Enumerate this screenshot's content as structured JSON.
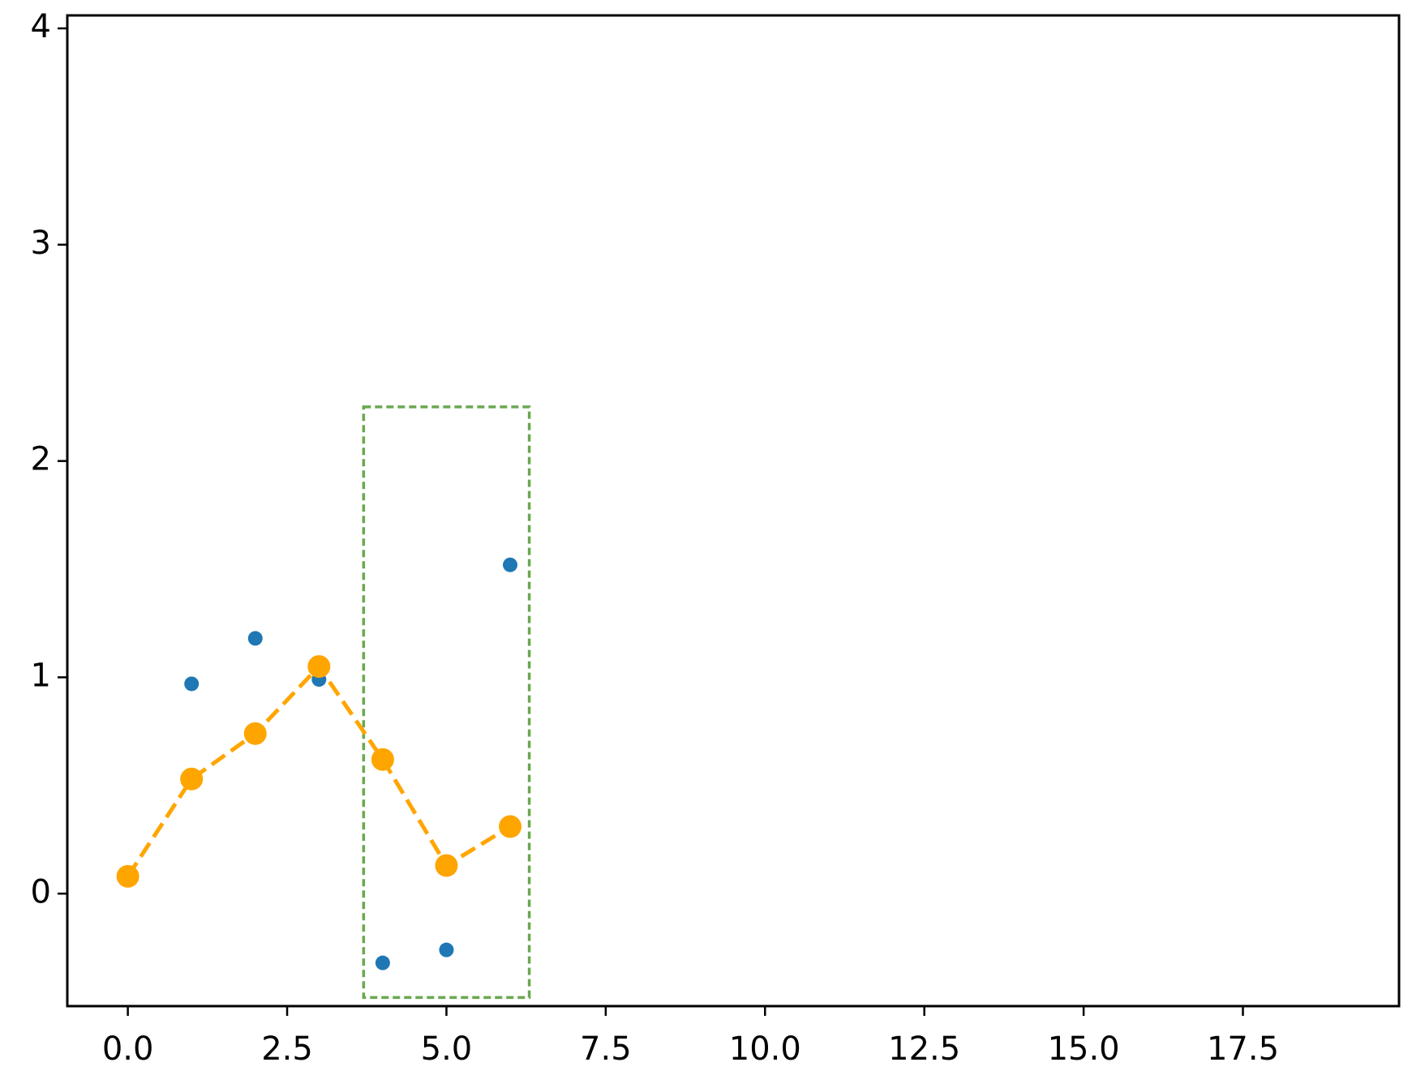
{
  "chart_data": {
    "type": "line",
    "series": [
      {
        "type": "scatter",
        "color": "#1f77b4",
        "x": [
          1,
          2,
          3,
          4,
          5,
          6
        ],
        "values": [
          0.97,
          1.18,
          0.99,
          -0.32,
          -0.26,
          1.52
        ]
      },
      {
        "type": "line",
        "color": "#ffa500",
        "dashed": true,
        "x": [
          0,
          1,
          2,
          3,
          4,
          5,
          6
        ],
        "values": [
          0.08,
          0.53,
          0.74,
          1.05,
          0.62,
          0.13,
          0.31
        ]
      }
    ],
    "highlight": {
      "x": [
        3.7,
        6.3
      ],
      "y": [
        -0.48,
        2.25
      ],
      "color": "#6aa84f"
    },
    "xlim": [
      -0.95,
      19.95
    ],
    "ylim": [
      -0.52,
      4.06
    ],
    "xticks": [
      {
        "value": 0,
        "label": "0.0"
      },
      2.5,
      {
        "value": 5,
        "label": "5.0"
      },
      7.5,
      {
        "value": 10,
        "label": "10.0"
      },
      12.5,
      {
        "value": 15,
        "label": "15.0"
      },
      17.5
    ],
    "yticks": [
      0,
      1,
      2,
      3,
      4
    ]
  }
}
